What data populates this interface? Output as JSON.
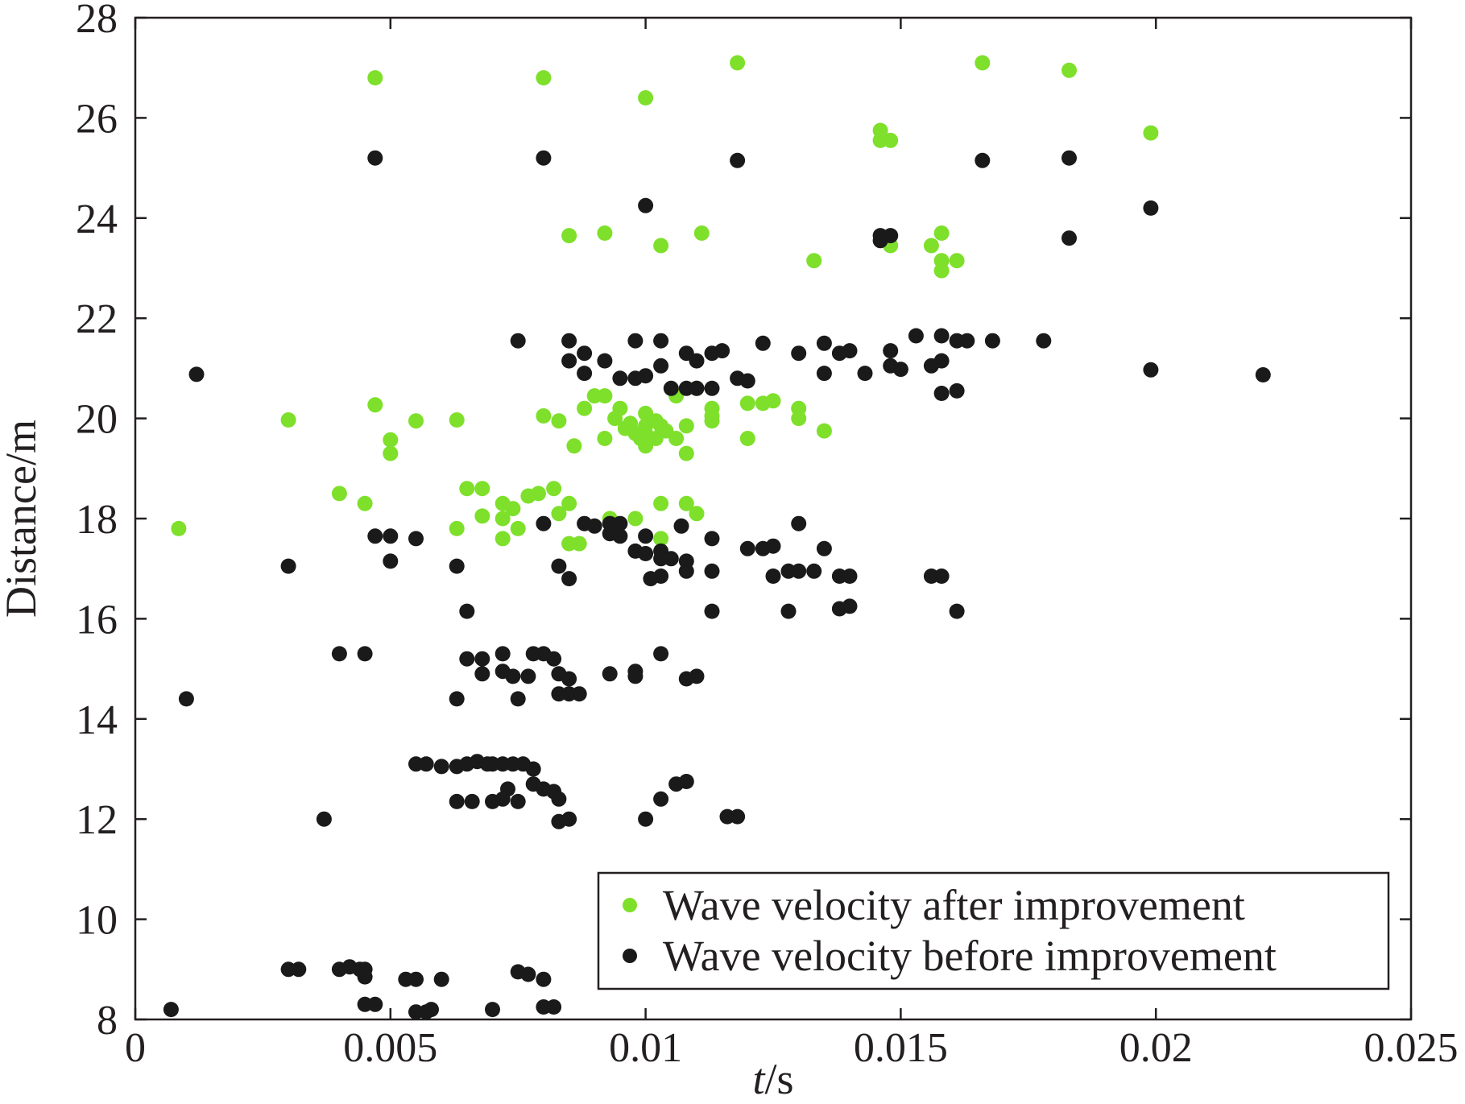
{
  "chart_data": {
    "type": "scatter",
    "title": "",
    "xlabel_italic": "t",
    "xlabel_rest": "/s",
    "ylabel": "Distance/m",
    "xlim": [
      0,
      0.025
    ],
    "ylim": [
      8,
      28
    ],
    "xticks": [
      0,
      0.005,
      0.01,
      0.015,
      0.02,
      0.025
    ],
    "xtick_labels": [
      "0",
      "0.005",
      "0.01",
      "0.015",
      "0.02",
      "0.025"
    ],
    "yticks": [
      8,
      10,
      12,
      14,
      16,
      18,
      20,
      22,
      24,
      26,
      28
    ],
    "ytick_labels": [
      "8",
      "10",
      "12",
      "14",
      "16",
      "18",
      "20",
      "22",
      "24",
      "26",
      "28"
    ],
    "grid": false,
    "legend_position": "lower-right",
    "series": [
      {
        "name": "Wave velocity after improvement",
        "color": "#7ee02a",
        "points": [
          [
            0.00085,
            17.8
          ],
          [
            0.003,
            19.97
          ],
          [
            0.004,
            18.5
          ],
          [
            0.0045,
            18.3
          ],
          [
            0.0047,
            20.27
          ],
          [
            0.005,
            19.57
          ],
          [
            0.005,
            19.3
          ],
          [
            0.0055,
            19.95
          ],
          [
            0.0063,
            19.97
          ],
          [
            0.0063,
            17.8
          ],
          [
            0.0065,
            18.6
          ],
          [
            0.0068,
            18.6
          ],
          [
            0.0068,
            18.05
          ],
          [
            0.0072,
            18.3
          ],
          [
            0.0072,
            18.0
          ],
          [
            0.0072,
            17.6
          ],
          [
            0.0074,
            18.2
          ],
          [
            0.0075,
            17.8
          ],
          [
            0.0077,
            18.45
          ],
          [
            0.0079,
            18.5
          ],
          [
            0.008,
            20.05
          ],
          [
            0.0082,
            18.6
          ],
          [
            0.0083,
            19.95
          ],
          [
            0.0083,
            18.1
          ],
          [
            0.0085,
            18.3
          ],
          [
            0.0085,
            17.5
          ],
          [
            0.0086,
            19.45
          ],
          [
            0.0087,
            17.5
          ],
          [
            0.0088,
            20.2
          ],
          [
            0.009,
            20.45
          ],
          [
            0.0092,
            20.45
          ],
          [
            0.0092,
            19.6
          ],
          [
            0.0093,
            18.0
          ],
          [
            0.0094,
            20.0
          ],
          [
            0.0095,
            20.2
          ],
          [
            0.0096,
            19.8
          ],
          [
            0.0097,
            19.9
          ],
          [
            0.0098,
            19.7
          ],
          [
            0.0098,
            18.0
          ],
          [
            0.0099,
            19.6
          ],
          [
            0.01,
            20.1
          ],
          [
            0.01,
            19.85
          ],
          [
            0.01,
            19.7
          ],
          [
            0.01,
            19.45
          ],
          [
            0.0102,
            19.95
          ],
          [
            0.0102,
            19.6
          ],
          [
            0.0103,
            19.85
          ],
          [
            0.0103,
            18.3
          ],
          [
            0.0103,
            17.6
          ],
          [
            0.0104,
            19.75
          ],
          [
            0.0106,
            20.45
          ],
          [
            0.0106,
            19.6
          ],
          [
            0.0108,
            19.85
          ],
          [
            0.0108,
            19.3
          ],
          [
            0.0108,
            18.3
          ],
          [
            0.011,
            20.6
          ],
          [
            0.011,
            18.1
          ],
          [
            0.0113,
            20.2
          ],
          [
            0.0113,
            19.95
          ],
          [
            0.0113,
            20.05
          ],
          [
            0.012,
            20.3
          ],
          [
            0.012,
            19.6
          ],
          [
            0.0123,
            20.3
          ],
          [
            0.0125,
            20.35
          ],
          [
            0.013,
            20.2
          ],
          [
            0.013,
            20.0
          ],
          [
            0.0135,
            19.75
          ],
          [
            0.0047,
            26.8
          ],
          [
            0.008,
            26.8
          ],
          [
            0.01,
            26.4
          ],
          [
            0.0118,
            27.1
          ],
          [
            0.0166,
            27.1
          ],
          [
            0.0183,
            26.95
          ],
          [
            0.0199,
            25.7
          ],
          [
            0.0146,
            25.75
          ],
          [
            0.0146,
            25.55
          ],
          [
            0.0148,
            25.55
          ],
          [
            0.0085,
            23.65
          ],
          [
            0.0092,
            23.7
          ],
          [
            0.0103,
            23.45
          ],
          [
            0.0111,
            23.7
          ],
          [
            0.0133,
            23.15
          ],
          [
            0.0148,
            23.45
          ],
          [
            0.0156,
            23.45
          ],
          [
            0.0158,
            23.7
          ],
          [
            0.0158,
            23.15
          ],
          [
            0.0158,
            22.95
          ],
          [
            0.0161,
            23.15
          ]
        ]
      },
      {
        "name": "Wave velocity before improvement",
        "color": "#1a1a1a",
        "points": [
          [
            0.0012,
            20.88
          ],
          [
            0.0075,
            21.55
          ],
          [
            0.0085,
            21.55
          ],
          [
            0.0085,
            21.15
          ],
          [
            0.0088,
            21.3
          ],
          [
            0.0088,
            20.9
          ],
          [
            0.0092,
            21.15
          ],
          [
            0.0095,
            20.8
          ],
          [
            0.0098,
            21.55
          ],
          [
            0.0098,
            20.8
          ],
          [
            0.01,
            20.85
          ],
          [
            0.0103,
            21.55
          ],
          [
            0.0103,
            21.05
          ],
          [
            0.0105,
            20.6
          ],
          [
            0.0108,
            21.3
          ],
          [
            0.0108,
            20.6
          ],
          [
            0.011,
            21.15
          ],
          [
            0.011,
            20.6
          ],
          [
            0.0113,
            21.3
          ],
          [
            0.0113,
            20.6
          ],
          [
            0.0115,
            21.35
          ],
          [
            0.0118,
            20.8
          ],
          [
            0.012,
            20.75
          ],
          [
            0.0123,
            21.5
          ],
          [
            0.013,
            21.3
          ],
          [
            0.0135,
            21.5
          ],
          [
            0.0135,
            20.9
          ],
          [
            0.0138,
            21.3
          ],
          [
            0.014,
            21.35
          ],
          [
            0.0143,
            20.9
          ],
          [
            0.0148,
            21.35
          ],
          [
            0.0148,
            21.05
          ],
          [
            0.015,
            20.98
          ],
          [
            0.0153,
            21.65
          ],
          [
            0.0156,
            21.05
          ],
          [
            0.0158,
            21.65
          ],
          [
            0.0158,
            21.15
          ],
          [
            0.0158,
            20.5
          ],
          [
            0.0161,
            21.55
          ],
          [
            0.0161,
            20.55
          ],
          [
            0.0163,
            21.55
          ],
          [
            0.0168,
            21.55
          ],
          [
            0.0178,
            21.55
          ],
          [
            0.0199,
            20.97
          ],
          [
            0.0221,
            20.87
          ],
          [
            0.0047,
            25.2
          ],
          [
            0.008,
            25.2
          ],
          [
            0.0118,
            25.15
          ],
          [
            0.0166,
            25.15
          ],
          [
            0.0183,
            25.2
          ],
          [
            0.01,
            24.25
          ],
          [
            0.0199,
            24.2
          ],
          [
            0.0146,
            23.65
          ],
          [
            0.0146,
            23.55
          ],
          [
            0.0148,
            23.65
          ],
          [
            0.0183,
            23.6
          ],
          [
            0.003,
            17.05
          ],
          [
            0.0047,
            17.65
          ],
          [
            0.005,
            17.65
          ],
          [
            0.005,
            17.15
          ],
          [
            0.0055,
            17.6
          ],
          [
            0.0063,
            17.05
          ],
          [
            0.008,
            17.9
          ],
          [
            0.0083,
            17.05
          ],
          [
            0.0085,
            16.8
          ],
          [
            0.0088,
            17.9
          ],
          [
            0.009,
            17.85
          ],
          [
            0.0093,
            17.9
          ],
          [
            0.0093,
            17.7
          ],
          [
            0.0095,
            17.9
          ],
          [
            0.0095,
            17.65
          ],
          [
            0.0098,
            17.35
          ],
          [
            0.01,
            17.65
          ],
          [
            0.01,
            17.3
          ],
          [
            0.0101,
            16.8
          ],
          [
            0.0103,
            17.35
          ],
          [
            0.0103,
            17.2
          ],
          [
            0.0103,
            16.85
          ],
          [
            0.0105,
            17.2
          ],
          [
            0.0107,
            17.85
          ],
          [
            0.0108,
            17.15
          ],
          [
            0.0108,
            16.95
          ],
          [
            0.0113,
            17.6
          ],
          [
            0.0113,
            16.95
          ],
          [
            0.0113,
            16.15
          ],
          [
            0.012,
            17.4
          ],
          [
            0.0123,
            17.4
          ],
          [
            0.0125,
            17.45
          ],
          [
            0.0125,
            16.85
          ],
          [
            0.0128,
            16.95
          ],
          [
            0.0128,
            16.15
          ],
          [
            0.013,
            17.9
          ],
          [
            0.013,
            16.95
          ],
          [
            0.0133,
            16.95
          ],
          [
            0.0135,
            17.4
          ],
          [
            0.0138,
            16.85
          ],
          [
            0.0138,
            16.2
          ],
          [
            0.014,
            16.85
          ],
          [
            0.014,
            16.25
          ],
          [
            0.0156,
            16.85
          ],
          [
            0.0158,
            16.85
          ],
          [
            0.0161,
            16.15
          ],
          [
            0.001,
            14.4
          ],
          [
            0.004,
            15.3
          ],
          [
            0.0045,
            15.3
          ],
          [
            0.0063,
            14.4
          ],
          [
            0.0065,
            15.2
          ],
          [
            0.0065,
            16.15
          ],
          [
            0.0068,
            15.2
          ],
          [
            0.0068,
            14.9
          ],
          [
            0.0072,
            15.3
          ],
          [
            0.0072,
            14.95
          ],
          [
            0.0074,
            14.85
          ],
          [
            0.0075,
            14.4
          ],
          [
            0.0077,
            14.85
          ],
          [
            0.0078,
            15.3
          ],
          [
            0.008,
            15.3
          ],
          [
            0.0082,
            15.2
          ],
          [
            0.0083,
            14.9
          ],
          [
            0.0083,
            14.5
          ],
          [
            0.0085,
            14.8
          ],
          [
            0.0085,
            14.5
          ],
          [
            0.0087,
            14.5
          ],
          [
            0.0093,
            14.9
          ],
          [
            0.0098,
            14.95
          ],
          [
            0.0098,
            14.85
          ],
          [
            0.0103,
            15.3
          ],
          [
            0.0108,
            14.8
          ],
          [
            0.011,
            14.85
          ],
          [
            0.0037,
            12.0
          ],
          [
            0.0055,
            13.1
          ],
          [
            0.0057,
            13.1
          ],
          [
            0.006,
            13.05
          ],
          [
            0.0063,
            13.05
          ],
          [
            0.0063,
            12.35
          ],
          [
            0.0065,
            13.1
          ],
          [
            0.0066,
            12.35
          ],
          [
            0.0067,
            13.15
          ],
          [
            0.0069,
            13.1
          ],
          [
            0.007,
            13.1
          ],
          [
            0.007,
            12.35
          ],
          [
            0.0072,
            13.1
          ],
          [
            0.0072,
            12.4
          ],
          [
            0.0073,
            12.6
          ],
          [
            0.0074,
            13.1
          ],
          [
            0.0075,
            12.35
          ],
          [
            0.0076,
            13.1
          ],
          [
            0.0078,
            13.0
          ],
          [
            0.0078,
            12.7
          ],
          [
            0.008,
            12.6
          ],
          [
            0.0082,
            12.55
          ],
          [
            0.0083,
            12.4
          ],
          [
            0.0083,
            11.95
          ],
          [
            0.0085,
            12.0
          ],
          [
            0.01,
            12.0
          ],
          [
            0.0103,
            12.4
          ],
          [
            0.0106,
            12.7
          ],
          [
            0.0108,
            12.75
          ],
          [
            0.0116,
            12.05
          ],
          [
            0.0118,
            12.05
          ],
          [
            0.003,
            9.0
          ],
          [
            0.0032,
            9.0
          ],
          [
            0.004,
            9.0
          ],
          [
            0.0042,
            9.05
          ],
          [
            0.0044,
            9.0
          ],
          [
            0.0045,
            9.0
          ],
          [
            0.0045,
            8.85
          ],
          [
            0.0045,
            8.3
          ],
          [
            0.0047,
            8.3
          ],
          [
            0.0053,
            8.8
          ],
          [
            0.0055,
            8.8
          ],
          [
            0.0057,
            8.15
          ],
          [
            0.006,
            8.8
          ],
          [
            0.0075,
            8.95
          ],
          [
            0.0077,
            8.9
          ],
          [
            0.008,
            8.8
          ],
          [
            0.008,
            8.25
          ],
          [
            0.0082,
            8.25
          ],
          [
            0.0055,
            8.15
          ],
          [
            0.0058,
            8.2
          ],
          [
            0.0007,
            8.2
          ],
          [
            0.007,
            8.2
          ]
        ]
      }
    ]
  }
}
